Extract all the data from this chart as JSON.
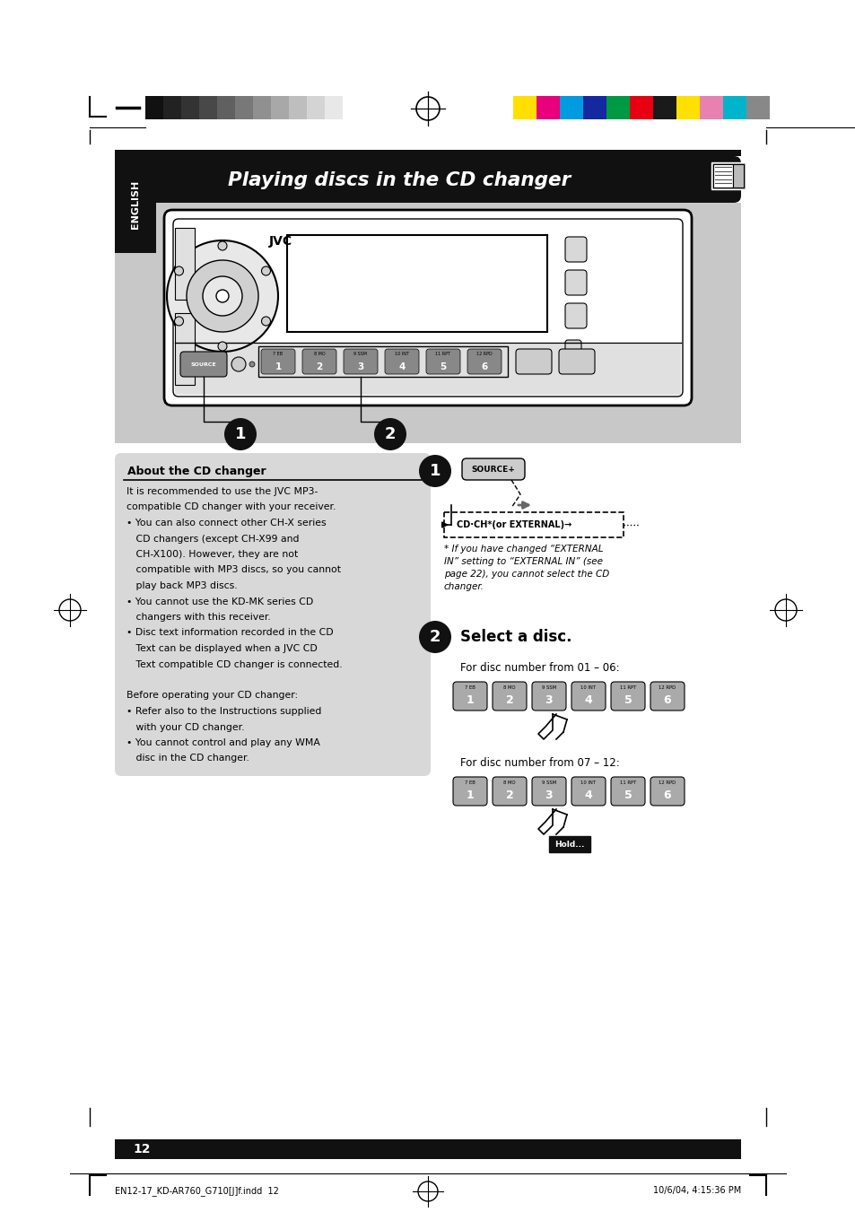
{
  "page_bg": "#ffffff",
  "title_text": "Playing discs in the CD changer",
  "title_bg": "#1a1a1a",
  "title_color": "#ffffff",
  "english_text": "ENGLISH",
  "section_bg": "#cccccc",
  "about_title": "About the CD changer",
  "step1_note": "* If you have changed “EXTERNAL\nIN” setting to “EXTERNAL IN” (see\npage 22), you cannot select the CD\nchanger.",
  "step2_title": "Select a disc.",
  "disc_text1": "For disc number from 01 – 06:",
  "disc_text2": "For disc number from 07 – 12:",
  "btn_top_labels": [
    "7 EB",
    "8 MO",
    "9 SSM",
    "10 INT",
    "11 RPT",
    "12 RPD"
  ],
  "btn_nums": [
    "1",
    "2",
    "3",
    "4",
    "5",
    "6"
  ],
  "page_number": "12",
  "footer_left": "EN12-17_KD-AR760_G710[J]f.indd  12",
  "footer_right": "10/6/04, 4:15:36 PM",
  "gray_bar_colors": [
    "#111111",
    "#222222",
    "#333333",
    "#484848",
    "#606060",
    "#787878",
    "#909090",
    "#a8a8a8",
    "#bebebe",
    "#d4d4d4",
    "#e8e8e8",
    "#ffffff"
  ],
  "color_bar_colors": [
    "#ffe000",
    "#e8007c",
    "#009be0",
    "#1428a0",
    "#009944",
    "#e60012",
    "#1a1a1a",
    "#ffe000",
    "#e880b0",
    "#00b4cc",
    "#888888"
  ]
}
